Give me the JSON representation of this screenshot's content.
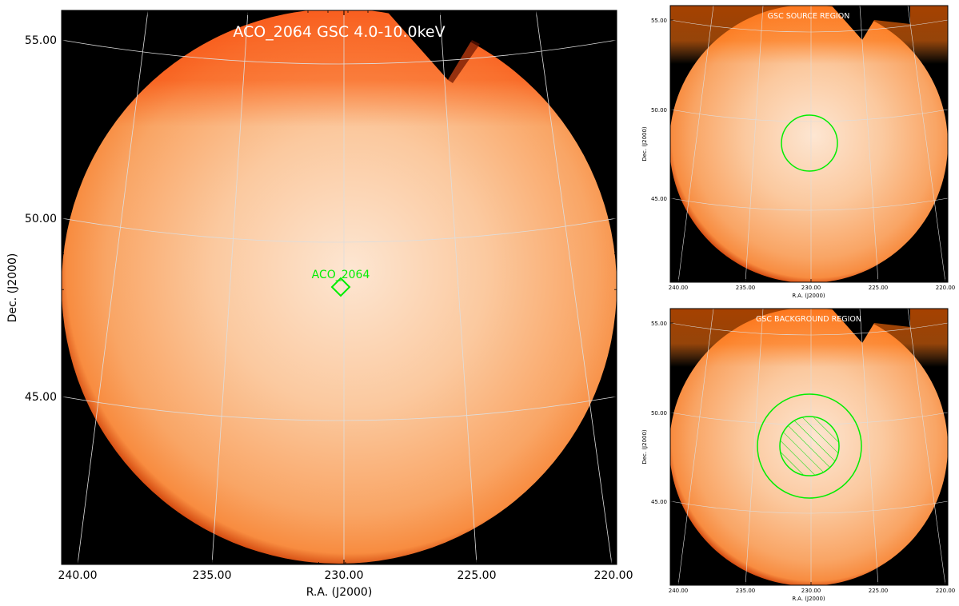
{
  "main_panel": {
    "title": "ACO_2064 GSC 4.0-10.0keV",
    "source_label": "ACO_2064",
    "xlabel": "R.A. (J2000)",
    "ylabel": "Dec. (J2000)",
    "x_ticks": [
      "240.00",
      "235.00",
      "230.00",
      "225.00",
      "220.00"
    ],
    "y_ticks": [
      "55.00",
      "50.00",
      "45.00"
    ]
  },
  "source_panel": {
    "title": "GSC SOURCE REGION",
    "xlabel": "R.A. (J2000)",
    "ylabel": "Dec. (J2000)",
    "x_ticks": [
      "240.00",
      "235.00",
      "230.00",
      "225.00",
      "220.00"
    ],
    "y_ticks": [
      "55.00",
      "50.00",
      "45.00"
    ]
  },
  "background_panel": {
    "title": "GSC BACKGROUND REGION",
    "xlabel": "R.A. (J2000)",
    "ylabel": "Dec. (J2000)",
    "x_ticks": [
      "240.00",
      "235.00",
      "230.00",
      "225.00",
      "220.00"
    ],
    "y_ticks": [
      "55.00",
      "50.00",
      "45.00"
    ]
  },
  "colors": {
    "region": "#00ee00",
    "title_text": "#ffffff",
    "grid": "#dddddd",
    "frame": "#000000",
    "center": "#fde6d2",
    "bright": "#fbb581",
    "mid": "#f99d5a",
    "top": "#ff6a00",
    "limb": "#8a1e00"
  }
}
